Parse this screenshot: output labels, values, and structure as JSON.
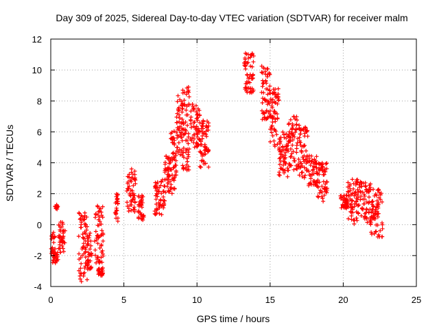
{
  "chart_data": {
    "type": "scatter",
    "title": "Day 309 of 2025, Sidereal Day-to-day VTEC variation (SDTVAR) for receiver malm",
    "xlabel": "GPS time / hours",
    "ylabel": "SDTVAR / TECUs",
    "xlim": [
      0,
      25
    ],
    "ylim": [
      -4,
      12
    ],
    "xticks": [
      "0",
      "5",
      "10",
      "15",
      "20",
      "25"
    ],
    "yticks": [
      "-4",
      "-2",
      "0",
      "2",
      "4",
      "6",
      "8",
      "10",
      "12"
    ],
    "grid": true,
    "marker": "+",
    "color": "#ff0000",
    "series": [
      {
        "name": "SDTVAR",
        "clusters": [
          {
            "x_start": 0.0,
            "x_end": 0.3,
            "y_low": -2.5,
            "y_high": -0.5
          },
          {
            "x_start": 0.3,
            "x_end": 0.5,
            "y_low": 1.0,
            "y_high": 1.3
          },
          {
            "x_start": 0.3,
            "x_end": 0.5,
            "y_low": -2.7,
            "y_high": -1.8
          },
          {
            "x_start": 0.5,
            "x_end": 1.0,
            "y_low": -1.8,
            "y_high": 0.2
          },
          {
            "x_start": 1.9,
            "x_end": 2.5,
            "y_low": -3.7,
            "y_high": 0.8
          },
          {
            "x_start": 2.5,
            "x_end": 2.8,
            "y_low": -3.0,
            "y_high": -0.5
          },
          {
            "x_start": 3.0,
            "x_end": 3.6,
            "y_low": -2.5,
            "y_high": 1.3
          },
          {
            "x_start": 3.2,
            "x_end": 3.6,
            "y_low": -3.3,
            "y_high": -2.8
          },
          {
            "x_start": 4.4,
            "x_end": 4.6,
            "y_low": 0.2,
            "y_high": 2.0
          },
          {
            "x_start": 5.2,
            "x_end": 5.8,
            "y_low": 0.8,
            "y_high": 3.7
          },
          {
            "x_start": 6.0,
            "x_end": 6.4,
            "y_low": 0.3,
            "y_high": 2.0
          },
          {
            "x_start": 7.1,
            "x_end": 7.8,
            "y_low": 0.6,
            "y_high": 3.0
          },
          {
            "x_start": 7.8,
            "x_end": 8.2,
            "y_low": 2.0,
            "y_high": 4.5
          },
          {
            "x_start": 8.2,
            "x_end": 8.6,
            "y_low": 2.0,
            "y_high": 6.2
          },
          {
            "x_start": 8.6,
            "x_end": 9.0,
            "y_low": 4.5,
            "y_high": 8.5
          },
          {
            "x_start": 9.0,
            "x_end": 9.5,
            "y_low": 3.5,
            "y_high": 9.0
          },
          {
            "x_start": 9.5,
            "x_end": 10.2,
            "y_low": 5.0,
            "y_high": 7.8
          },
          {
            "x_start": 10.2,
            "x_end": 10.8,
            "y_low": 3.7,
            "y_high": 7.0
          },
          {
            "x_start": 13.2,
            "x_end": 13.9,
            "y_low": 8.5,
            "y_high": 11.1
          },
          {
            "x_start": 14.4,
            "x_end": 15.0,
            "y_low": 6.8,
            "y_high": 10.3
          },
          {
            "x_start": 15.0,
            "x_end": 15.6,
            "y_low": 5.0,
            "y_high": 9.0
          },
          {
            "x_start": 15.6,
            "x_end": 16.2,
            "y_low": 2.8,
            "y_high": 6.0
          },
          {
            "x_start": 16.2,
            "x_end": 17.0,
            "y_low": 3.5,
            "y_high": 7.0
          },
          {
            "x_start": 17.0,
            "x_end": 17.6,
            "y_low": 3.0,
            "y_high": 6.3
          },
          {
            "x_start": 17.6,
            "x_end": 18.2,
            "y_low": 2.5,
            "y_high": 4.5
          },
          {
            "x_start": 18.2,
            "x_end": 18.9,
            "y_low": 1.5,
            "y_high": 4.0
          },
          {
            "x_start": 19.8,
            "x_end": 20.3,
            "y_low": 1.0,
            "y_high": 2.0
          },
          {
            "x_start": 20.3,
            "x_end": 21.0,
            "y_low": 0.0,
            "y_high": 3.0
          },
          {
            "x_start": 21.0,
            "x_end": 21.9,
            "y_low": 0.0,
            "y_high": 2.8
          },
          {
            "x_start": 21.9,
            "x_end": 22.7,
            "y_low": -0.8,
            "y_high": 2.3
          }
        ]
      }
    ]
  }
}
